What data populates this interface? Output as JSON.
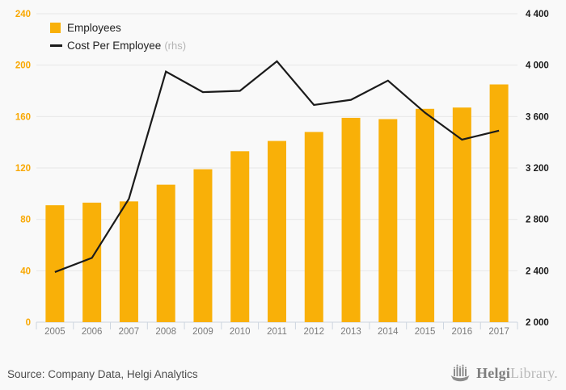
{
  "chart_data": {
    "type": "bar",
    "subtype": "bar-line-combo",
    "categories": [
      "2005",
      "2006",
      "2007",
      "2008",
      "2009",
      "2010",
      "2011",
      "2012",
      "2013",
      "2014",
      "2015",
      "2016",
      "2017"
    ],
    "series": [
      {
        "name": "Employees",
        "render": "bar",
        "axis": "left",
        "color": "#F9B008",
        "values": [
          91,
          93,
          94,
          107,
          119,
          133,
          141,
          148,
          159,
          158,
          166,
          167,
          185
        ]
      },
      {
        "name": "Cost Per Employee",
        "render": "line",
        "axis": "right",
        "color": "#1B1B1B",
        "values": [
          2390,
          2500,
          2960,
          3950,
          3790,
          3800,
          4030,
          3690,
          3730,
          3880,
          3630,
          3420,
          3490
        ]
      }
    ],
    "left_axis": {
      "min": 0,
      "max": 240,
      "step": 40,
      "ticks": [
        "0",
        "40",
        "80",
        "120",
        "160",
        "200",
        "240"
      ],
      "label_color": "#F9A802"
    },
    "right_axis": {
      "min": 2000,
      "max": 4400,
      "step": 400,
      "ticks": [
        "2 000",
        "2 400",
        "2 800",
        "3 200",
        "3 600",
        "4 000",
        "4 400"
      ],
      "label_color": "#1A1A1A"
    },
    "grid": "horizontal",
    "legend_position": "top-left",
    "legend": {
      "employees_label": "Employees",
      "cost_label": "Cost Per Employee",
      "cost_suffix": "(rhs)"
    },
    "x_label_color": "#7B7B7B",
    "gridline_color": "#E8E8E8",
    "axis_line_color": "#CDD5DF"
  },
  "footer": {
    "source": "Source: Company Data, Helgi Analytics",
    "logo": {
      "brand_bold": "Helgi",
      "brand_light": "Library."
    }
  }
}
